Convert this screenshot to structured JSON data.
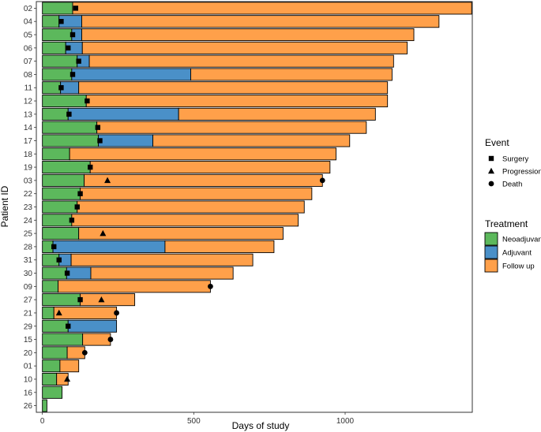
{
  "chart_data": {
    "type": "bar",
    "orientation": "horizontal",
    "stacked": true,
    "xlabel": "Days of study",
    "ylabel": "Patient ID",
    "xlim": [
      -20,
      1420
    ],
    "xticks": [
      0,
      500,
      1000
    ],
    "grid": false,
    "legend_position": "right",
    "treatment_legend": {
      "title": "Treatment",
      "items": [
        {
          "key": "neo",
          "label": "Neoadjuvant",
          "color": "#5cb85c"
        },
        {
          "key": "adj",
          "label": "Adjuvant",
          "color": "#4a90c8"
        },
        {
          "key": "fu",
          "label": "Follow up",
          "color": "#ffa04a"
        }
      ]
    },
    "event_legend": {
      "title": "Event",
      "items": [
        {
          "key": "surgery",
          "label": "Surgery",
          "shape": "square"
        },
        {
          "key": "progression",
          "label": "Progression",
          "shape": "triangle"
        },
        {
          "key": "death",
          "label": "Death",
          "shape": "circle"
        }
      ]
    },
    "patients": [
      {
        "id": "02",
        "neo": 100,
        "adj": 0,
        "fu": 1318,
        "surgery": 110
      },
      {
        "id": "04",
        "neo": 55,
        "adj": 75,
        "fu": 1180,
        "surgery": 62
      },
      {
        "id": "05",
        "neo": 97,
        "adj": 33,
        "fu": 1097,
        "surgery": 100
      },
      {
        "id": "06",
        "neo": 77,
        "adj": 55,
        "fu": 1073,
        "surgery": 85
      },
      {
        "id": "07",
        "neo": 115,
        "adj": 40,
        "fu": 1005,
        "surgery": 120
      },
      {
        "id": "08",
        "neo": 97,
        "adj": 393,
        "fu": 665,
        "surgery": 100
      },
      {
        "id": "11",
        "neo": 60,
        "adj": 60,
        "fu": 1020,
        "surgery": 62
      },
      {
        "id": "12",
        "neo": 145,
        "adj": 0,
        "fu": 995,
        "surgery": 148
      },
      {
        "id": "13",
        "neo": 85,
        "adj": 365,
        "fu": 650,
        "surgery": 88
      },
      {
        "id": "14",
        "neo": 180,
        "adj": 0,
        "fu": 890,
        "surgery": 183
      },
      {
        "id": "17",
        "neo": 185,
        "adj": 180,
        "fu": 650,
        "surgery": 190
      },
      {
        "id": "18",
        "neo": 90,
        "adj": 0,
        "fu": 880
      },
      {
        "id": "19",
        "neo": 158,
        "adj": 0,
        "fu": 792,
        "surgery": 158
      },
      {
        "id": "03",
        "neo": 138,
        "adj": 0,
        "fu": 787,
        "progression": 215,
        "death": 925
      },
      {
        "id": "22",
        "neo": 125,
        "adj": 0,
        "fu": 765,
        "surgery": 125
      },
      {
        "id": "23",
        "neo": 115,
        "adj": 0,
        "fu": 750,
        "surgery": 115
      },
      {
        "id": "24",
        "neo": 97,
        "adj": 0,
        "fu": 748,
        "surgery": 97
      },
      {
        "id": "25",
        "neo": 120,
        "adj": 0,
        "fu": 675,
        "progression": 200
      },
      {
        "id": "28",
        "neo": 35,
        "adj": 370,
        "fu": 360,
        "surgery": 38
      },
      {
        "id": "31",
        "neo": 55,
        "adj": 40,
        "fu": 600,
        "surgery": 55
      },
      {
        "id": "30",
        "neo": 80,
        "adj": 80,
        "fu": 470,
        "surgery": 82
      },
      {
        "id": "09",
        "neo": 52,
        "adj": 0,
        "fu": 503,
        "death": 555
      },
      {
        "id": "27",
        "neo": 125,
        "adj": 0,
        "fu": 180,
        "surgery": 125,
        "progression": 195
      },
      {
        "id": "21",
        "neo": 38,
        "adj": 0,
        "fu": 207,
        "progression": 55,
        "death": 245
      },
      {
        "id": "29",
        "neo": 85,
        "adj": 160,
        "fu": 0,
        "surgery": 85
      },
      {
        "id": "15",
        "neo": 133,
        "adj": 0,
        "fu": 92,
        "death": 225
      },
      {
        "id": "20",
        "neo": 82,
        "adj": 0,
        "fu": 58,
        "death": 140
      },
      {
        "id": "01",
        "neo": 58,
        "adj": 0,
        "fu": 62
      },
      {
        "id": "10",
        "neo": 47,
        "adj": 0,
        "fu": 38,
        "progression": 82
      },
      {
        "id": "16",
        "neo": 65,
        "adj": 0,
        "fu": 0
      },
      {
        "id": "26",
        "neo": 15,
        "adj": 0,
        "fu": 0
      }
    ]
  }
}
